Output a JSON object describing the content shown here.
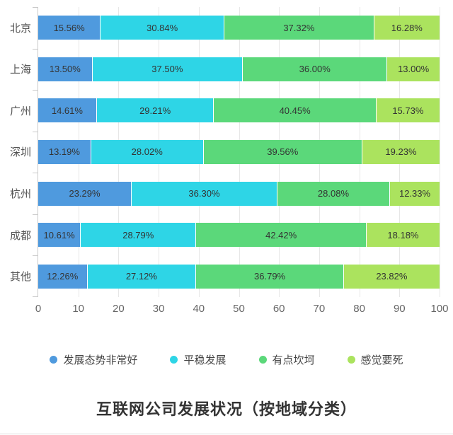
{
  "chart_data": {
    "type": "bar",
    "orientation": "horizontal",
    "stacked": true,
    "title": "互联网公司发展状况（按地域分类）",
    "categories": [
      "北京",
      "上海",
      "广州",
      "深圳",
      "杭州",
      "成都",
      "其他"
    ],
    "series": [
      {
        "name": "发展态势非常好",
        "color": "#4f9ade",
        "values": [
          15.56,
          13.5,
          14.61,
          13.19,
          23.29,
          10.61,
          12.26
        ]
      },
      {
        "name": "平稳发展",
        "color": "#2ed5e6",
        "values": [
          30.84,
          37.5,
          29.21,
          28.02,
          36.3,
          28.79,
          27.12
        ]
      },
      {
        "name": "有点坎坷",
        "color": "#5bd87a",
        "values": [
          37.32,
          36.0,
          40.45,
          39.56,
          28.08,
          42.42,
          36.79
        ]
      },
      {
        "name": "感觉要死",
        "color": "#abe35e",
        "values": [
          16.28,
          13.0,
          15.73,
          19.23,
          12.33,
          18.18,
          23.82
        ]
      }
    ],
    "value_label_suffix": "%",
    "xlabel": "",
    "ylabel": "",
    "x_axis": {
      "min": 0,
      "max": 100,
      "ticks": [
        0,
        10,
        20,
        30,
        40,
        50,
        60,
        70,
        80,
        90,
        100
      ]
    },
    "grid": true,
    "legend_position": "bottom",
    "colors": {
      "grid_line": "#e7e7e7",
      "axis_line": "#c9c9c9",
      "bar_label_text": "#333333",
      "axis_text": "#666666",
      "category_text": "#555555",
      "title_text": "#333333"
    }
  }
}
